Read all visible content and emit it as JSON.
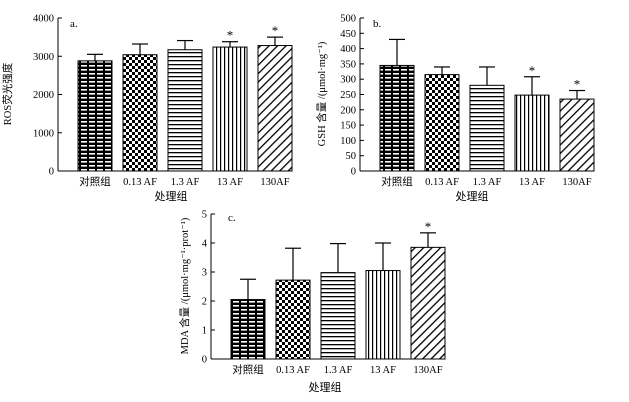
{
  "chart_data": [
    {
      "panel": "a.",
      "type": "bar",
      "categories": [
        "对照组",
        "0.13 AF",
        "1.3 AF",
        "13 AF",
        "130AF"
      ],
      "values": [
        2880,
        3040,
        3170,
        3240,
        3280
      ],
      "errors": [
        170,
        280,
        240,
        140,
        220
      ],
      "significance": [
        "",
        "",
        "",
        "*",
        "*"
      ],
      "ylim": [
        0,
        4000
      ],
      "yticks": [
        "0",
        "1000",
        "2000",
        "3000",
        "4000"
      ],
      "ylabel": "ROS荧光强度",
      "xlabel": "处理组"
    },
    {
      "panel": "b.",
      "type": "bar",
      "categories": [
        "对照组",
        "0.13 AF",
        "1.3 AF",
        "13 AF",
        "130AF"
      ],
      "values": [
        345,
        315,
        280,
        248,
        235
      ],
      "errors": [
        85,
        25,
        60,
        60,
        28
      ],
      "significance": [
        "",
        "",
        "",
        "*",
        "*"
      ],
      "ylim": [
        0,
        500
      ],
      "yticks": [
        "0",
        "50",
        "100",
        "150",
        "200",
        "250",
        "300",
        "350",
        "400",
        "450",
        "500"
      ],
      "ylabel": "GSH 含量 /(μmol·mg⁻¹)",
      "xlabel": "处理组"
    },
    {
      "panel": "c.",
      "type": "bar",
      "categories": [
        "对照组",
        "0.13 AF",
        "1.3 AF",
        "13 AF",
        "130AF"
      ],
      "values": [
        2.05,
        2.72,
        2.98,
        3.05,
        3.85
      ],
      "errors": [
        0.7,
        1.1,
        1.0,
        0.95,
        0.5
      ],
      "significance": [
        "",
        "",
        "",
        "",
        "*"
      ],
      "ylim": [
        0,
        5
      ],
      "yticks": [
        "0",
        "1",
        "2",
        "3",
        "4",
        "5"
      ],
      "ylabel": "MDA 含量 /(μmol·mg⁻¹·prot⁻¹)",
      "xlabel": "处理组"
    }
  ]
}
